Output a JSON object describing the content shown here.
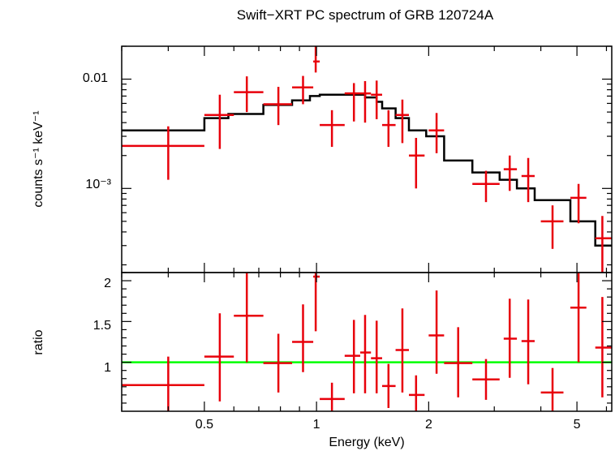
{
  "colors": {
    "data": "#e8000b",
    "model": "#000000",
    "ratio_line": "#00ff00",
    "axes": "#000000",
    "background": "#ffffff"
  },
  "chart_data": [
    {
      "type": "line",
      "title": "Swift−XRT PC spectrum of GRB 120724A",
      "xlabel": "Energy (keV)",
      "ylabel": "counts s⁻¹ keV⁻¹",
      "xscale": "log",
      "yscale": "log",
      "xlim": [
        0.3,
        6.2
      ],
      "ylim": [
        0.00017,
        0.02
      ],
      "grid": false,
      "tick_labels": [
        {
          "value": 0.01,
          "label": "0.01"
        },
        {
          "value": 0.001,
          "label": "10⁻³"
        }
      ],
      "series": [
        {
          "role": "data",
          "points": [
            {
              "x": 0.4,
              "xlo": 0.3,
              "xhi": 0.5,
              "y": 0.00245,
              "ylo": 0.0012,
              "yhi": 0.0037
            },
            {
              "x": 0.55,
              "xlo": 0.5,
              "xhi": 0.6,
              "y": 0.0047,
              "ylo": 0.0023,
              "yhi": 0.0072
            },
            {
              "x": 0.65,
              "xlo": 0.6,
              "xhi": 0.72,
              "y": 0.0076,
              "ylo": 0.005,
              "yhi": 0.0106
            },
            {
              "x": 0.79,
              "xlo": 0.72,
              "xhi": 0.86,
              "y": 0.0059,
              "ylo": 0.0038,
              "yhi": 0.0085
            },
            {
              "x": 0.92,
              "xlo": 0.86,
              "xhi": 0.98,
              "y": 0.0084,
              "ylo": 0.0059,
              "yhi": 0.0107
            },
            {
              "x": 0.995,
              "xlo": 0.98,
              "xhi": 1.02,
              "y": 0.0145,
              "ylo": 0.0115,
              "yhi": 0.02
            },
            {
              "x": 1.1,
              "xlo": 1.02,
              "xhi": 1.19,
              "y": 0.0038,
              "ylo": 0.0024,
              "yhi": 0.0052
            },
            {
              "x": 1.26,
              "xlo": 1.19,
              "xhi": 1.31,
              "y": 0.0074,
              "ylo": 0.0041,
              "yhi": 0.0092
            },
            {
              "x": 1.35,
              "xlo": 1.31,
              "xhi": 1.4,
              "y": 0.0074,
              "ylo": 0.004,
              "yhi": 0.0096
            },
            {
              "x": 1.45,
              "xlo": 1.4,
              "xhi": 1.5,
              "y": 0.0072,
              "ylo": 0.0043,
              "yhi": 0.0097
            },
            {
              "x": 1.56,
              "xlo": 1.5,
              "xhi": 1.63,
              "y": 0.0038,
              "ylo": 0.0024,
              "yhi": 0.0052
            },
            {
              "x": 1.7,
              "xlo": 1.63,
              "xhi": 1.77,
              "y": 0.0047,
              "ylo": 0.0026,
              "yhi": 0.0065
            },
            {
              "x": 1.85,
              "xlo": 1.77,
              "xhi": 1.95,
              "y": 0.002,
              "ylo": 0.001,
              "yhi": 0.0029
            },
            {
              "x": 2.1,
              "xlo": 2.0,
              "xhi": 2.2,
              "y": 0.0034,
              "ylo": 0.0021,
              "yhi": 0.0049
            },
            {
              "x": 2.85,
              "xlo": 2.62,
              "xhi": 3.1,
              "y": 0.0011,
              "ylo": 0.00075,
              "yhi": 0.00145
            },
            {
              "x": 3.3,
              "xlo": 3.18,
              "xhi": 3.45,
              "y": 0.0015,
              "ylo": 0.00095,
              "yhi": 0.002
            },
            {
              "x": 3.7,
              "xlo": 3.55,
              "xhi": 3.85,
              "y": 0.0013,
              "ylo": 0.00075,
              "yhi": 0.0019
            },
            {
              "x": 4.3,
              "xlo": 4.0,
              "xhi": 4.6,
              "y": 0.0005,
              "ylo": 0.00028,
              "yhi": 0.0007
            },
            {
              "x": 5.05,
              "xlo": 4.8,
              "xhi": 5.3,
              "y": 0.00082,
              "ylo": 0.00048,
              "yhi": 0.0011
            },
            {
              "x": 5.85,
              "xlo": 5.6,
              "xhi": 6.2,
              "y": 0.00035,
              "ylo": 0.00017,
              "yhi": 0.00056
            }
          ]
        },
        {
          "role": "model",
          "steps": [
            {
              "xlo": 0.3,
              "xhi": 0.5,
              "y": 0.0034
            },
            {
              "xlo": 0.5,
              "xhi": 0.58,
              "y": 0.0044
            },
            {
              "xlo": 0.58,
              "xhi": 0.72,
              "y": 0.0048
            },
            {
              "xlo": 0.72,
              "xhi": 0.86,
              "y": 0.0058
            },
            {
              "xlo": 0.86,
              "xhi": 0.96,
              "y": 0.0064
            },
            {
              "xlo": 0.96,
              "xhi": 1.02,
              "y": 0.007
            },
            {
              "xlo": 1.02,
              "xhi": 1.35,
              "y": 0.0072
            },
            {
              "xlo": 1.35,
              "xhi": 1.45,
              "y": 0.0068
            },
            {
              "xlo": 1.45,
              "xhi": 1.5,
              "y": 0.0062
            },
            {
              "xlo": 1.5,
              "xhi": 1.63,
              "y": 0.0054
            },
            {
              "xlo": 1.63,
              "xhi": 1.77,
              "y": 0.0044
            },
            {
              "xlo": 1.77,
              "xhi": 1.97,
              "y": 0.0034
            },
            {
              "xlo": 1.97,
              "xhi": 2.2,
              "y": 0.003
            },
            {
              "xlo": 2.2,
              "xhi": 2.62,
              "y": 0.0018
            },
            {
              "xlo": 2.62,
              "xhi": 3.1,
              "y": 0.0014
            },
            {
              "xlo": 3.1,
              "xhi": 3.45,
              "y": 0.0012
            },
            {
              "xlo": 3.45,
              "xhi": 3.85,
              "y": 0.001
            },
            {
              "xlo": 3.85,
              "xhi": 4.8,
              "y": 0.00078
            },
            {
              "xlo": 4.8,
              "xhi": 5.6,
              "y": 0.0005
            },
            {
              "xlo": 5.6,
              "xhi": 6.2,
              "y": 0.0003
            }
          ]
        }
      ]
    },
    {
      "type": "line",
      "xlabel": "Energy (keV)",
      "ylabel": "ratio",
      "xscale": "log",
      "yscale": "linear",
      "xlim": [
        0.3,
        6.2
      ],
      "ylim": [
        0.4,
        2.1
      ],
      "grid": false,
      "xtick_labels": [
        {
          "value": 0.5,
          "label": "0.5"
        },
        {
          "value": 1,
          "label": "1"
        },
        {
          "value": 2,
          "label": "2"
        },
        {
          "value": 5,
          "label": "5"
        }
      ],
      "ytick_labels": [
        {
          "value": 1,
          "label": "1"
        },
        {
          "value": 1.5,
          "label": "1.5"
        },
        {
          "value": 2,
          "label": "2"
        }
      ],
      "reference_line": 1.0,
      "series": [
        {
          "role": "ratio",
          "points": [
            {
              "x": 0.4,
              "xlo": 0.3,
              "xhi": 0.5,
              "y": 0.72,
              "ylo": 0.4,
              "yhi": 1.07
            },
            {
              "x": 0.55,
              "xlo": 0.5,
              "xhi": 0.6,
              "y": 1.07,
              "ylo": 0.52,
              "yhi": 1.6
            },
            {
              "x": 0.65,
              "xlo": 0.6,
              "xhi": 0.72,
              "y": 1.57,
              "ylo": 1.0,
              "yhi": 2.1
            },
            {
              "x": 0.79,
              "xlo": 0.72,
              "xhi": 0.86,
              "y": 0.99,
              "ylo": 0.63,
              "yhi": 1.35
            },
            {
              "x": 0.92,
              "xlo": 0.86,
              "xhi": 0.98,
              "y": 1.25,
              "ylo": 0.88,
              "yhi": 1.71
            },
            {
              "x": 0.995,
              "xlo": 0.98,
              "xhi": 1.02,
              "y": 2.05,
              "ylo": 1.38,
              "yhi": 2.1
            },
            {
              "x": 1.1,
              "xlo": 1.02,
              "xhi": 1.19,
              "y": 0.55,
              "ylo": 0.4,
              "yhi": 0.75
            },
            {
              "x": 1.26,
              "xlo": 1.19,
              "xhi": 1.31,
              "y": 1.08,
              "ylo": 0.62,
              "yhi": 1.52
            },
            {
              "x": 1.35,
              "xlo": 1.31,
              "xhi": 1.4,
              "y": 1.12,
              "ylo": 0.62,
              "yhi": 1.58
            },
            {
              "x": 1.45,
              "xlo": 1.4,
              "xhi": 1.5,
              "y": 1.05,
              "ylo": 0.62,
              "yhi": 1.51
            },
            {
              "x": 1.56,
              "xlo": 1.5,
              "xhi": 1.63,
              "y": 0.71,
              "ylo": 0.44,
              "yhi": 0.98
            },
            {
              "x": 1.7,
              "xlo": 1.63,
              "xhi": 1.77,
              "y": 1.15,
              "ylo": 0.63,
              "yhi": 1.66
            },
            {
              "x": 1.85,
              "xlo": 1.77,
              "xhi": 1.95,
              "y": 0.6,
              "ylo": 0.4,
              "yhi": 0.84
            },
            {
              "x": 2.1,
              "xlo": 2.0,
              "xhi": 2.2,
              "y": 1.33,
              "ylo": 0.86,
              "yhi": 1.88
            },
            {
              "x": 2.4,
              "xlo": 2.2,
              "xhi": 2.62,
              "y": 0.99,
              "ylo": 0.57,
              "yhi": 1.43
            },
            {
              "x": 2.85,
              "xlo": 2.62,
              "xhi": 3.1,
              "y": 0.79,
              "ylo": 0.54,
              "yhi": 1.04
            },
            {
              "x": 3.3,
              "xlo": 3.18,
              "xhi": 3.45,
              "y": 1.29,
              "ylo": 0.81,
              "yhi": 1.78
            },
            {
              "x": 3.7,
              "xlo": 3.55,
              "xhi": 3.85,
              "y": 1.26,
              "ylo": 0.73,
              "yhi": 1.77
            },
            {
              "x": 4.3,
              "xlo": 4.0,
              "xhi": 4.6,
              "y": 0.63,
              "ylo": 0.4,
              "yhi": 0.93
            },
            {
              "x": 5.05,
              "xlo": 4.8,
              "xhi": 5.3,
              "y": 1.67,
              "ylo": 1.0,
              "yhi": 2.1
            },
            {
              "x": 5.85,
              "xlo": 5.6,
              "xhi": 6.2,
              "y": 1.18,
              "ylo": 0.57,
              "yhi": 1.8
            }
          ]
        }
      ]
    }
  ]
}
